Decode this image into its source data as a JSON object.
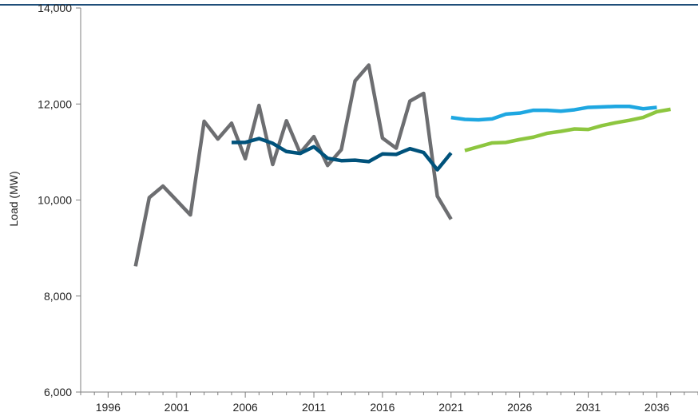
{
  "chart_data": {
    "type": "line",
    "title": "",
    "xlabel": "",
    "ylabel": "Load (MW)",
    "xlim": [
      1994,
      2039
    ],
    "ylim": [
      6000,
      14000
    ],
    "grid": false,
    "x_ticks": [
      1996,
      2001,
      2006,
      2011,
      2016,
      2021,
      2026,
      2031,
      2036
    ],
    "y_ticks": [
      6000,
      8000,
      10000,
      12000,
      14000
    ],
    "x_tick_labels": [
      "1996",
      "2001",
      "2006",
      "2011",
      "2016",
      "2021",
      "2026",
      "2031",
      "2036"
    ],
    "y_tick_labels": [
      "6,000",
      "8,000",
      "10,000",
      "12,000",
      "14,000"
    ],
    "series": [
      {
        "color": "#6d6e71",
        "x": [
          1998,
          1999,
          2000,
          2001,
          2002,
          2003,
          2004,
          2005,
          2006,
          2007,
          2008,
          2009,
          2010,
          2011,
          2012,
          2013,
          2014,
          2015,
          2016,
          2017,
          2018,
          2019,
          2020,
          2021
        ],
        "y": [
          8620,
          10050,
          10290,
          9990,
          9690,
          11640,
          11270,
          11600,
          10860,
          11970,
          10740,
          11650,
          10980,
          11320,
          10720,
          11050,
          12480,
          12810,
          11290,
          11080,
          12060,
          12220,
          10080,
          9600
        ]
      },
      {
        "color": "#00527b",
        "x": [
          2005,
          2006,
          2007,
          2008,
          2009,
          2010,
          2011,
          2012,
          2013,
          2014,
          2015,
          2016,
          2017,
          2018,
          2019,
          2020,
          2021
        ],
        "y": [
          11200,
          11200,
          11280,
          11180,
          11010,
          10970,
          11110,
          10870,
          10820,
          10830,
          10800,
          10960,
          10950,
          11070,
          10990,
          10630,
          10980
        ]
      },
      {
        "color": "#1ea7e1",
        "x": [
          2021,
          2022,
          2023,
          2024,
          2025,
          2026,
          2027,
          2028,
          2029,
          2030,
          2031,
          2032,
          2033,
          2034,
          2035,
          2036
        ],
        "y": [
          11720,
          11680,
          11670,
          11690,
          11790,
          11810,
          11870,
          11870,
          11850,
          11880,
          11930,
          11940,
          11950,
          11950,
          11900,
          11930
        ]
      },
      {
        "color": "#8dc63f",
        "x": [
          2022,
          2023,
          2024,
          2025,
          2026,
          2027,
          2028,
          2029,
          2030,
          2031,
          2032,
          2033,
          2034,
          2035,
          2036,
          2037
        ],
        "y": [
          11030,
          11110,
          11190,
          11200,
          11260,
          11310,
          11390,
          11430,
          11480,
          11470,
          11550,
          11610,
          11660,
          11720,
          11840,
          11890
        ]
      }
    ]
  }
}
